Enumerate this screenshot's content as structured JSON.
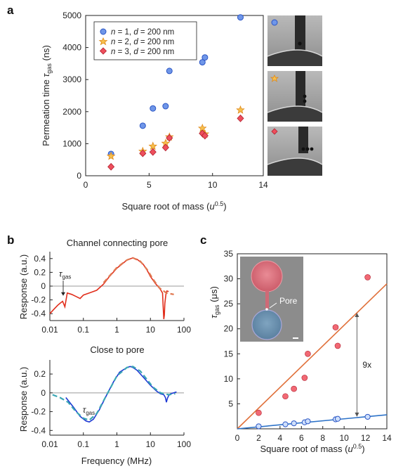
{
  "colors": {
    "blue": "#6f96e8",
    "blue_edge": "#2a55c5",
    "orange": "#f6c04e",
    "orange_edge": "#e08a1a",
    "red": "#ee4f5c",
    "red_edge": "#b22030",
    "red_curve": "#e12e1c",
    "red_fit": "#e07850",
    "blue_curve": "#1d38d4",
    "teal_fit": "#3aa6b4",
    "fit_orange": "#e0703a",
    "fit_blue": "#2c72c8",
    "zero_line": "#9a9a9a"
  },
  "panel_labels": {
    "a": "a",
    "b": "b",
    "c": "c"
  },
  "chart_data": [
    {
      "id": "a",
      "type": "scatter",
      "xlabel_main": "Square root of mass (",
      "xlabel_unit": "u",
      "xlabel_sup": "0.5",
      "xlabel_end": ")",
      "ylabel_main": "Permeation time ",
      "ylabel_sym": "τ",
      "ylabel_sub": "gas",
      "ylabel_end": " (ns)",
      "xlim": [
        0,
        14
      ],
      "ylim": [
        0,
        5000
      ],
      "xticks": [
        "0",
        "5",
        "10",
        "14"
      ],
      "xtick_values": [
        0,
        5,
        10,
        14
      ],
      "yticks": [
        "0",
        "1000",
        "2000",
        "3000",
        "4000",
        "5000"
      ],
      "ytick_values": [
        0,
        1000,
        2000,
        3000,
        4000,
        5000
      ],
      "legend_position": "top-left",
      "series": [
        {
          "name_n": "n",
          "name_mid": " = 1, ",
          "name_d": "d",
          "name_end": " = 200 nm",
          "marker": "circle",
          "x": [
            2.0,
            4.5,
            5.3,
            6.3,
            6.6,
            9.2,
            9.4,
            12.2
          ],
          "y": [
            680,
            1560,
            2100,
            2170,
            3270,
            3540,
            3690,
            4940
          ]
        },
        {
          "name_n": "n",
          "name_mid": " = 2, ",
          "name_d": "d",
          "name_end": " = 200 nm",
          "marker": "star",
          "x": [
            2.0,
            4.5,
            5.3,
            6.3,
            6.6,
            9.2,
            9.4,
            12.2
          ],
          "y": [
            610,
            760,
            920,
            1010,
            1210,
            1480,
            1300,
            2050
          ]
        },
        {
          "name_n": "n",
          "name_mid": " = 3, ",
          "name_d": "d",
          "name_end": " = 200 nm",
          "marker": "diamond",
          "x": [
            2.0,
            4.5,
            5.3,
            6.3,
            6.6,
            9.2,
            9.4,
            12.2
          ],
          "y": [
            280,
            700,
            740,
            880,
            1180,
            1320,
            1250,
            1790
          ]
        }
      ]
    },
    {
      "id": "b-top",
      "type": "line",
      "title": "Channel connecting pore",
      "xlabel": "",
      "ylabel": "Response (a.u.)",
      "xscale": "log",
      "xlim": [
        0.01,
        100
      ],
      "ylim": [
        -0.5,
        0.5
      ],
      "xticks": [
        "0.01",
        "0.1",
        "1",
        "10",
        "100"
      ],
      "xtick_values": [
        0.01,
        0.1,
        1,
        10,
        100
      ],
      "yticks": [
        "0.4",
        "0.2",
        "0",
        "-0.2",
        "-0.4"
      ],
      "ytick_values": [
        0.4,
        0.2,
        0,
        -0.2,
        -0.4
      ],
      "annotation_sym": "τ",
      "annotation_sub": "gas",
      "annotation_x": 0.025,
      "curve": {
        "x": [
          0.01,
          0.013,
          0.017,
          0.02,
          0.024,
          0.028,
          0.033,
          0.045,
          0.06,
          0.08,
          0.1,
          0.15,
          0.25,
          0.4,
          0.6,
          1.0,
          1.5,
          2.0,
          3.0,
          4.0,
          6.0,
          8.0,
          10,
          14,
          18,
          20,
          23,
          24,
          25,
          26,
          27,
          29,
          31,
          35
        ],
        "y": [
          -0.4,
          -0.34,
          -0.28,
          -0.25,
          -0.22,
          -0.3,
          -0.1,
          -0.12,
          -0.15,
          -0.18,
          -0.13,
          -0.1,
          -0.06,
          0.03,
          0.14,
          0.26,
          0.33,
          0.38,
          0.41,
          0.39,
          0.32,
          0.23,
          0.14,
          0.04,
          -0.02,
          -0.05,
          -0.1,
          -0.3,
          -0.48,
          -0.42,
          -0.25,
          -0.12,
          -0.07,
          -0.08
        ]
      },
      "fit": {
        "x": [
          0.4,
          1.0,
          2.0,
          3.0,
          5.0,
          8.0,
          12,
          18,
          30,
          50
        ],
        "y": [
          0.05,
          0.27,
          0.38,
          0.41,
          0.36,
          0.24,
          0.1,
          -0.02,
          -0.1,
          -0.12
        ]
      }
    },
    {
      "id": "b-bottom",
      "type": "line",
      "title": "Close to pore",
      "xlabel": "Frequency (MHz)",
      "ylabel": "Response (a.u.)",
      "xscale": "log",
      "xlim": [
        0.01,
        100
      ],
      "ylim": [
        -0.45,
        0.35
      ],
      "xticks": [
        "0.01",
        "0.1",
        "1",
        "10",
        "100"
      ],
      "xtick_values": [
        0.01,
        0.1,
        1,
        10,
        100
      ],
      "yticks": [
        "0.2",
        "0",
        "-0.2",
        "-0.4"
      ],
      "ytick_values": [
        0.2,
        0,
        -0.2,
        -0.4
      ],
      "annotation_sym": "τ",
      "annotation_sub": "gas",
      "annotation_x": 0.14,
      "curve": {
        "x": [
          0.03,
          0.05,
          0.08,
          0.12,
          0.15,
          0.2,
          0.3,
          0.5,
          0.8,
          1.2,
          2.0,
          2.5,
          3.0,
          4.0,
          6.0,
          10,
          15,
          20,
          25,
          28,
          30,
          32,
          35,
          40,
          50,
          60
        ],
        "y": [
          -0.05,
          -0.15,
          -0.25,
          -0.3,
          -0.31,
          -0.28,
          -0.18,
          -0.02,
          0.12,
          0.22,
          0.27,
          0.28,
          0.27,
          0.24,
          0.17,
          0.08,
          0.02,
          -0.01,
          -0.02,
          -0.05,
          -0.1,
          -0.06,
          -0.03,
          -0.01,
          0.0,
          0.01
        ]
      },
      "fit": {
        "x": [
          0.012,
          0.02,
          0.035,
          0.06,
          0.1,
          0.15,
          0.25,
          0.5,
          1.0,
          2.0,
          3.0,
          5.0,
          8.0,
          12,
          20,
          35,
          55
        ],
        "y": [
          -0.02,
          -0.05,
          -0.1,
          -0.2,
          -0.27,
          -0.29,
          -0.22,
          -0.02,
          0.18,
          0.27,
          0.28,
          0.23,
          0.14,
          0.06,
          0.0,
          -0.02,
          -0.01
        ]
      }
    },
    {
      "id": "c",
      "type": "scatter",
      "xlabel_main": "Square root of mass (",
      "xlabel_unit": "u",
      "xlabel_sup": "0.5",
      "xlabel_end": ")",
      "ylabel_sym": "τ",
      "ylabel_sub": "gas",
      "ylabel_end": " (μs)",
      "xlim": [
        0,
        14
      ],
      "ylim": [
        0,
        35
      ],
      "xticks": [
        "0",
        "2",
        "4",
        "6",
        "8",
        "10",
        "12",
        "14"
      ],
      "xtick_values": [
        0,
        2,
        4,
        6,
        8,
        10,
        12,
        14
      ],
      "yticks": [
        "5",
        "10",
        "15",
        "20",
        "25",
        "30",
        "35"
      ],
      "ytick_values": [
        5,
        10,
        15,
        20,
        25,
        30,
        35
      ],
      "series": [
        {
          "marker": "circle-filled-red",
          "x": [
            2.0,
            4.5,
            5.3,
            6.3,
            6.6,
            9.2,
            9.4,
            12.2
          ],
          "y": [
            3.2,
            6.5,
            8.0,
            10.2,
            15.0,
            20.3,
            16.6,
            30.3
          ]
        },
        {
          "marker": "circle-open-blue",
          "x": [
            2.0,
            4.5,
            5.3,
            6.3,
            6.6,
            9.2,
            9.4,
            12.2
          ],
          "y": [
            0.5,
            0.9,
            1.1,
            1.3,
            1.5,
            1.9,
            2.0,
            2.4
          ]
        }
      ],
      "fit_lines": [
        {
          "x": [
            0,
            14
          ],
          "y": [
            0,
            29
          ]
        },
        {
          "x": [
            0,
            14
          ],
          "y": [
            0,
            2.8
          ]
        }
      ],
      "ratio_label": "9x",
      "ratio_x": 11.2,
      "ratio_y": [
        2.4,
        23.2
      ],
      "inset_label": "Pore"
    }
  ]
}
